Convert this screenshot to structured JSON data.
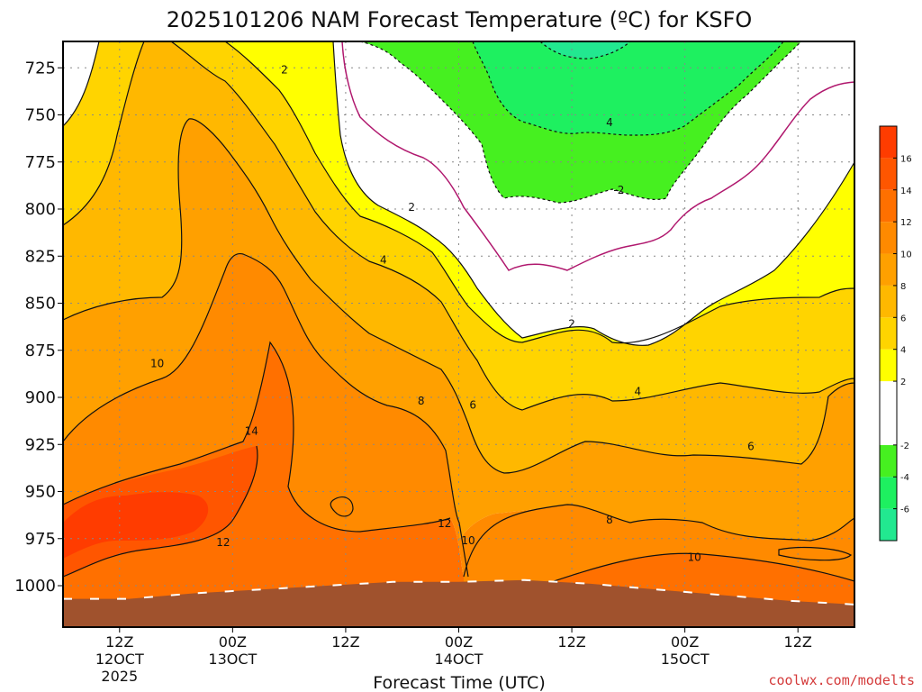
{
  "title": "2025101206 NAM Forecast Temperature (ºC) for KSFO",
  "xlabel": "Forecast Time (UTC)",
  "credit": "coolwx.com/modelts",
  "chart_data": {
    "type": "contour",
    "title": "2025101206 NAM Forecast Temperature (ºC) for KSFO",
    "xlabel": "Forecast Time (UTC)",
    "ylabel": "",
    "y_axis": {
      "ticks": [
        725,
        750,
        775,
        800,
        825,
        850,
        875,
        900,
        925,
        950,
        975,
        1000
      ],
      "inverted": true,
      "range": [
        711,
        1022
      ]
    },
    "x_axis": {
      "range_hours": [
        6,
        90
      ],
      "ticks": [
        {
          "hour": 12,
          "lines": [
            "12Z",
            "12OCT",
            "2025"
          ]
        },
        {
          "hour": 24,
          "lines": [
            "00Z",
            "13OCT"
          ]
        },
        {
          "hour": 36,
          "lines": [
            "12Z"
          ]
        },
        {
          "hour": 48,
          "lines": [
            "00Z",
            "14OCT"
          ]
        },
        {
          "hour": 60,
          "lines": [
            "12Z"
          ]
        },
        {
          "hour": 72,
          "lines": [
            "00Z",
            "15OCT"
          ]
        },
        {
          "hour": 84,
          "lines": [
            "12Z"
          ]
        }
      ]
    },
    "colorbar": {
      "ticks": [
        16,
        14,
        12,
        10,
        8,
        6,
        4,
        2,
        -2,
        -4,
        -6
      ],
      "levels": [
        {
          "min": -8,
          "max": -6,
          "color": "#22e890"
        },
        {
          "min": -6,
          "max": -4,
          "color": "#1ef060"
        },
        {
          "min": -4,
          "max": -2,
          "color": "#46f020"
        },
        {
          "min": -2,
          "max": 2,
          "color": "#ffffff"
        },
        {
          "min": 2,
          "max": 4,
          "color": "#ffff00"
        },
        {
          "min": 4,
          "max": 6,
          "color": "#ffd400"
        },
        {
          "min": 6,
          "max": 8,
          "color": "#ffb800"
        },
        {
          "min": 8,
          "max": 10,
          "color": "#ffa000"
        },
        {
          "min": 10,
          "max": 12,
          "color": "#ff8a00"
        },
        {
          "min": 12,
          "max": 14,
          "color": "#ff7000"
        },
        {
          "min": 14,
          "max": 16,
          "color": "#ff5600"
        },
        {
          "min": 16,
          "max": 18,
          "color": "#ff3c00"
        }
      ]
    },
    "contour_labels": [
      {
        "text": "2",
        "hour": 29.5,
        "p": 726
      },
      {
        "text": "2",
        "hour": 43,
        "p": 799
      },
      {
        "text": "4",
        "hour": 40,
        "p": 827
      },
      {
        "text": "10",
        "hour": 16,
        "p": 882
      },
      {
        "text": "8",
        "hour": 44,
        "p": 902
      },
      {
        "text": "6",
        "hour": 49.5,
        "p": 904
      },
      {
        "text": "14",
        "hour": 26,
        "p": 918
      },
      {
        "text": "12",
        "hour": 46.5,
        "p": 967
      },
      {
        "text": "12",
        "hour": 23,
        "p": 977
      },
      {
        "text": "10",
        "hour": 49,
        "p": 976
      },
      {
        "text": "2",
        "hour": 60,
        "p": 861
      },
      {
        "text": "4",
        "hour": 64,
        "p": 754
      },
      {
        "text": "-2",
        "hour": 65,
        "p": 790
      },
      {
        "text": "8",
        "hour": 64,
        "p": 965
      },
      {
        "text": "4",
        "hour": 67,
        "p": 897
      },
      {
        "text": "6",
        "hour": 79,
        "p": 926
      },
      {
        "text": "10",
        "hour": 73,
        "p": 985
      }
    ],
    "terrain_color": "#a0522d",
    "terrain_top_p": [
      1007,
      1007,
      1004,
      1002,
      1000,
      998,
      998,
      997,
      999,
      1002,
      1005,
      1008,
      1010
    ]
  }
}
